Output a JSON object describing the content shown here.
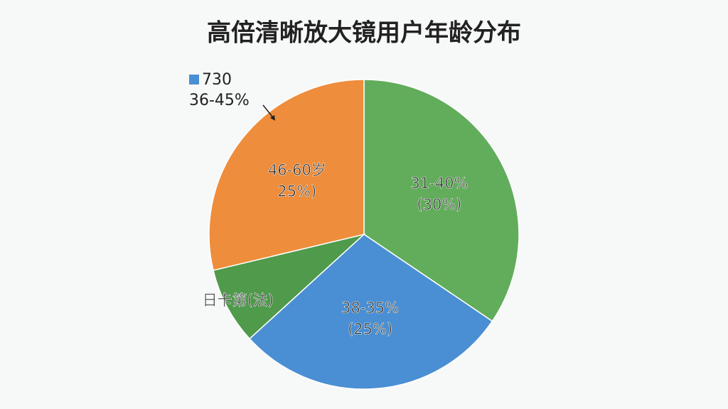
{
  "chart_data": {
    "type": "pie",
    "title": "高倍清晰放大镜用户年龄分布",
    "categories": [
      "31-40%",
      "38-35%",
      "日卡第(法)",
      "46-60岁"
    ],
    "values": [
      30,
      25,
      7,
      25
    ],
    "value_labels": [
      "(30%)",
      "(25%)",
      null,
      "25%)"
    ],
    "colors": [
      "#62ad5b",
      "#4a8fd3",
      "#4f9a4b",
      "#ee8d3c"
    ],
    "annotations": [
      "730",
      "36-45%"
    ]
  }
}
